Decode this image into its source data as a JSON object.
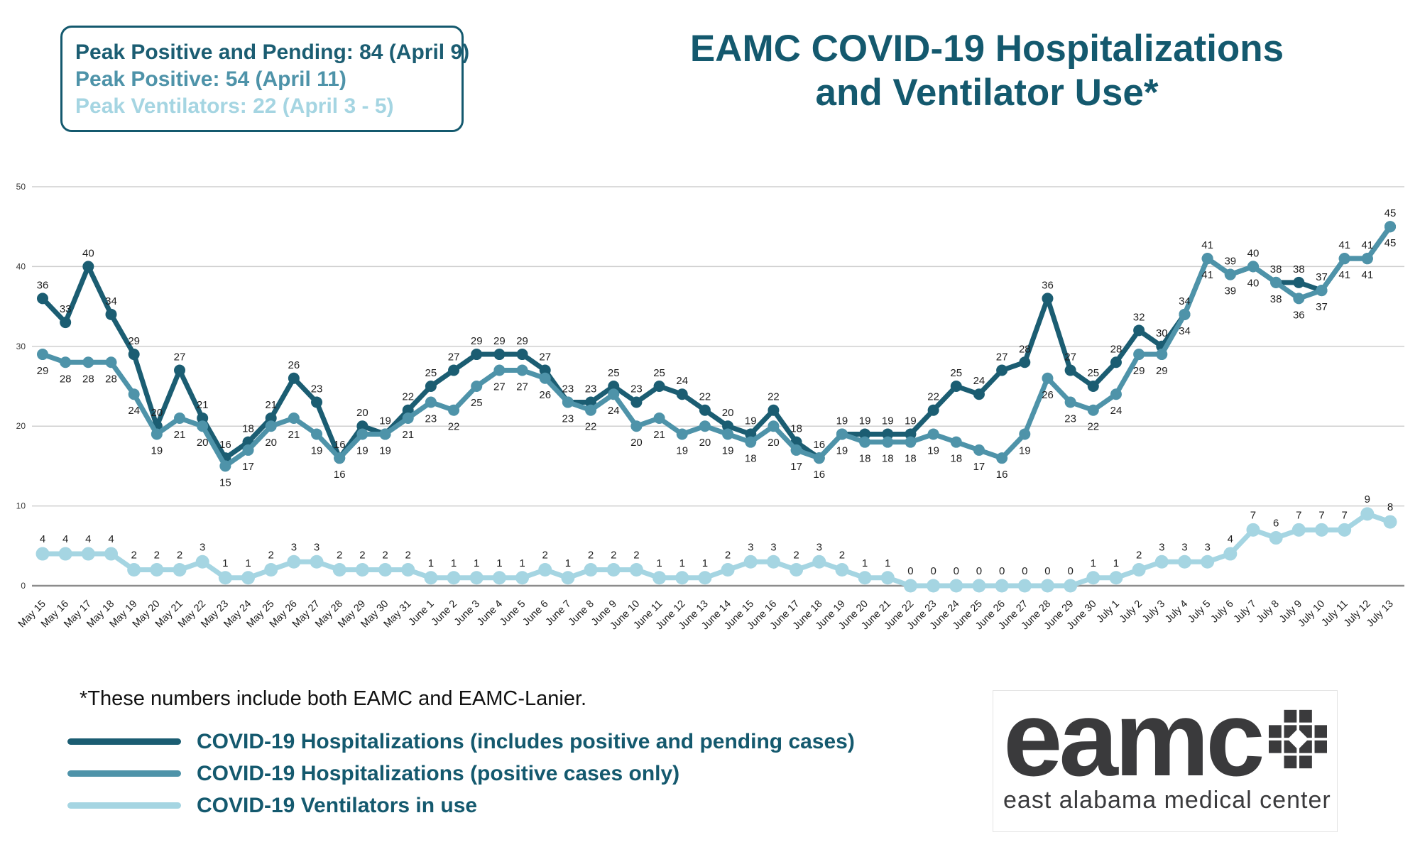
{
  "title": {
    "line1": "EAMC COVID-19 Hospitalizations",
    "line2": "and Ventilator Use*"
  },
  "peak_box": {
    "lines": [
      {
        "text": "Peak Positive and Pending: 84 (April 9)"
      },
      {
        "text": "Peak Positive: 54 (April 11)"
      },
      {
        "text": "Peak Ventilators: 22 (April 3 - 5)"
      }
    ]
  },
  "footnote": "*These numbers include both EAMC and EAMC-Lanier.",
  "logo": {
    "word": "eamc",
    "subtitle": "east alabama medical center"
  },
  "chart_data": {
    "type": "line",
    "title": "EAMC COVID-19 Hospitalizations and Ventilator Use",
    "grid": true,
    "legend_position": "bottom-left",
    "ylim": [
      0,
      50
    ],
    "yticks": [
      0,
      10,
      20,
      30,
      40,
      50
    ],
    "x": [
      "May 15",
      "May 16",
      "May 17",
      "May 18",
      "May 19",
      "May 20",
      "May 21",
      "May 22",
      "May 23",
      "May 24",
      "May 25",
      "May 26",
      "May 27",
      "May 28",
      "May 29",
      "May 30",
      "May 31",
      "June 1",
      "June 2",
      "June 3",
      "June 4",
      "June 5",
      "June 6",
      "June 7",
      "June 8",
      "June 9",
      "June 10",
      "June 11",
      "June 12",
      "June 13",
      "June 14",
      "June 15",
      "June 16",
      "June 17",
      "June 18",
      "June 19",
      "June 20",
      "June 21",
      "June 22",
      "June 23",
      "June 24",
      "June 25",
      "June 26",
      "June 27",
      "June 28",
      "June 29",
      "June 30",
      "July 1",
      "July 2",
      "July 3",
      "July 4",
      "July 5",
      "July 6",
      "July 7",
      "July 8",
      "July 9",
      "July 10",
      "July 11",
      "July 12",
      "July 13"
    ],
    "series": [
      {
        "name": "COVID-19 Hospitalizations (includes positive and pending cases)",
        "color": "#1b5d72",
        "values": [
          36,
          33,
          40,
          34,
          29,
          20,
          27,
          21,
          16,
          18,
          21,
          26,
          23,
          16,
          20,
          19,
          22,
          25,
          27,
          29,
          29,
          29,
          27,
          23,
          23,
          25,
          23,
          25,
          24,
          22,
          20,
          19,
          22,
          18,
          16,
          19,
          19,
          19,
          19,
          22,
          25,
          24,
          27,
          28,
          36,
          27,
          25,
          28,
          32,
          30,
          34,
          41,
          39,
          40,
          38,
          38,
          37,
          41,
          41,
          45
        ]
      },
      {
        "name": "COVID-19 Hospitalizations (positive cases only)",
        "color": "#4e93a9",
        "values": [
          29,
          28,
          28,
          28,
          24,
          19,
          21,
          20,
          15,
          17,
          20,
          21,
          19,
          16,
          19,
          19,
          21,
          23,
          22,
          25,
          27,
          27,
          26,
          23,
          22,
          24,
          20,
          21,
          19,
          20,
          19,
          18,
          20,
          17,
          16,
          19,
          18,
          18,
          18,
          19,
          18,
          17,
          16,
          19,
          26,
          23,
          22,
          24,
          29,
          29,
          34,
          41,
          39,
          40,
          38,
          36,
          37,
          41,
          41,
          45
        ]
      },
      {
        "name": "COVID-19 Ventilators in use",
        "color": "#a5d5e2",
        "values": [
          4,
          4,
          4,
          4,
          2,
          2,
          2,
          3,
          1,
          1,
          2,
          3,
          3,
          2,
          2,
          2,
          2,
          1,
          1,
          1,
          1,
          1,
          2,
          1,
          2,
          2,
          2,
          1,
          1,
          1,
          2,
          3,
          3,
          2,
          3,
          2,
          1,
          1,
          0,
          0,
          0,
          0,
          0,
          0,
          0,
          0,
          1,
          1,
          2,
          3,
          3,
          3,
          4,
          7,
          6,
          7,
          7,
          7,
          9,
          8
        ]
      }
    ]
  }
}
